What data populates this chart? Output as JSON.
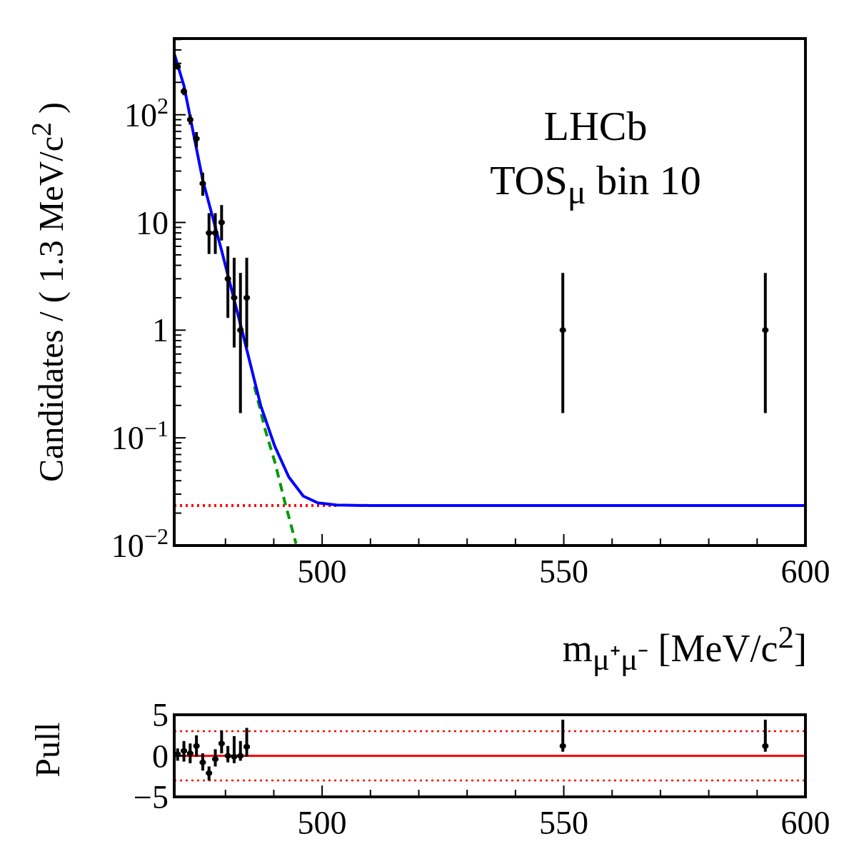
{
  "chart_data": [
    {
      "type": "scatter",
      "ylabel": "Candidates / ( 1.3 MeV/c$^{2}$ )",
      "xlabel": "m$_{μ⁺μ⁻}$ [MeV/c$^{2}$]",
      "annotations": [
        "LHCb",
        "TOS$_{μ}$ bin 10"
      ],
      "log": "y",
      "grid": false,
      "legend": false,
      "xlim": [
        469.4,
        600
      ],
      "ylim": [
        0.01,
        510
      ],
      "xticks": [
        {
          "value": 480,
          "label": null
        },
        {
          "value": 490,
          "label": null
        },
        500,
        {
          "value": 510,
          "label": null
        },
        {
          "value": 520,
          "label": null
        },
        {
          "value": 530,
          "label": null
        },
        {
          "value": 540,
          "label": null
        },
        550,
        {
          "value": 560,
          "label": null
        },
        {
          "value": 570,
          "label": null
        },
        {
          "value": 580,
          "label": null
        },
        {
          "value": 590,
          "label": null
        },
        600
      ],
      "yticks": [
        {
          "value": 0.01,
          "label": "10$^{−2}$"
        },
        {
          "value": 0.02,
          "label": null
        },
        {
          "value": 0.03,
          "label": null
        },
        {
          "value": 0.04,
          "label": null
        },
        {
          "value": 0.05,
          "label": null
        },
        {
          "value": 0.06,
          "label": null
        },
        {
          "value": 0.07,
          "label": null
        },
        {
          "value": 0.08,
          "label": null
        },
        {
          "value": 0.09,
          "label": null
        },
        {
          "value": 0.1,
          "label": "10$^{−1}$"
        },
        {
          "value": 0.2,
          "label": null
        },
        {
          "value": 0.3,
          "label": null
        },
        {
          "value": 0.4,
          "label": null
        },
        {
          "value": 0.5,
          "label": null
        },
        {
          "value": 0.6,
          "label": null
        },
        {
          "value": 0.7,
          "label": null
        },
        {
          "value": 0.8,
          "label": null
        },
        {
          "value": 0.9,
          "label": null
        },
        1,
        {
          "value": 2,
          "label": null
        },
        {
          "value": 3,
          "label": null
        },
        {
          "value": 4,
          "label": null
        },
        {
          "value": 5,
          "label": null
        },
        {
          "value": 6,
          "label": null
        },
        {
          "value": 7,
          "label": null
        },
        {
          "value": 8,
          "label": null
        },
        {
          "value": 9,
          "label": null
        },
        10,
        {
          "value": 20,
          "label": null
        },
        {
          "value": 30,
          "label": null
        },
        {
          "value": 40,
          "label": null
        },
        {
          "value": 50,
          "label": null
        },
        {
          "value": 60,
          "label": null
        },
        {
          "value": 70,
          "label": null
        },
        {
          "value": 80,
          "label": null
        },
        {
          "value": 90,
          "label": null
        },
        {
          "value": 100,
          "label": "10$^{2}$"
        },
        {
          "value": 200,
          "label": null
        },
        {
          "value": 300,
          "label": null
        },
        {
          "value": 400,
          "label": null
        },
        {
          "value": 500,
          "label": null
        }
      ],
      "series": [
        {
          "type": "line",
          "color": "#ff0000",
          "line_style": "dotted",
          "marker": "none",
          "x": [
            469.4,
            503
          ],
          "values": [
            0.0235,
            0.0235
          ]
        },
        {
          "type": "line",
          "color": "#009900",
          "line_style": "dashed",
          "marker": "none",
          "x": [
            486,
            488.2,
            490.2,
            492.2,
            494.6
          ],
          "values": [
            0.3,
            0.12,
            0.06,
            0.0262,
            0.0104
          ]
        },
        {
          "type": "line",
          "color": "#0000ff",
          "line_style": "solid",
          "marker": "none",
          "x": [
            469.4,
            471.4,
            475.3,
            479.2,
            483.4,
            487.3,
            490.2,
            493.1,
            496.1,
            499.1,
            503,
            510,
            600
          ],
          "values": [
            370,
            187,
            24.7,
            5.5,
            1,
            0.199,
            0.0836,
            0.0433,
            0.0288,
            0.0249,
            0.0238,
            0.0235,
            0.0235
          ]
        },
        {
          "color": "#000000",
          "marker": "circle",
          "x": [
            470.1,
            471.4,
            472.7,
            474.0,
            475.3,
            476.6,
            477.9,
            479.2,
            480.5,
            481.8,
            483.1,
            484.4,
            549.8,
            591.7
          ],
          "values": [
            280,
            165,
            90,
            60,
            23,
            8,
            8,
            10,
            3,
            2,
            1,
            2,
            1,
            1
          ],
          "errors": [
            [
              263,
              297
            ],
            [
              152,
              178
            ],
            [
              81,
              100
            ],
            [
              50,
              69
            ],
            [
              17.7,
              29
            ],
            [
              5.1,
              12.2
            ],
            [
              5.1,
              12.2
            ],
            [
              6.8,
              14.5
            ],
            [
              1.3,
              6.0
            ],
            [
              0.69,
              4.7
            ],
            [
              0.17,
              3.4
            ],
            [
              0.69,
              4.7
            ],
            [
              0.17,
              3.4
            ],
            [
              0.17,
              3.4
            ]
          ],
          "xerrors": [
            0.65,
            0.65,
            0.65,
            0.65,
            0.65,
            0.65,
            0.65,
            0.65,
            0.65,
            0.65,
            0.65,
            0.65,
            0.65,
            0.65
          ]
        }
      ]
    },
    {
      "type": "scatter",
      "ylabel": "Pull",
      "grid": false,
      "legend": false,
      "xlim": [
        469.4,
        600
      ],
      "ylim": [
        -5,
        5
      ],
      "xticks": [
        {
          "value": 480,
          "label": null
        },
        {
          "value": 490,
          "label": null
        },
        500,
        {
          "value": 510,
          "label": null
        },
        {
          "value": 520,
          "label": null
        },
        {
          "value": 530,
          "label": null
        },
        {
          "value": 540,
          "label": null
        },
        550,
        {
          "value": 560,
          "label": null
        },
        {
          "value": 570,
          "label": null
        },
        {
          "value": 580,
          "label": null
        },
        {
          "value": 590,
          "label": null
        },
        600
      ],
      "yticks": [
        {
          "value": -5,
          "label": "−5"
        },
        0,
        5
      ],
      "ref_lines": [
        {
          "axis": "y",
          "value": 0,
          "color": "#ff0000",
          "line_style": "solid"
        },
        {
          "axis": "y",
          "value": 3,
          "color": "#ff0000",
          "line_style": "dotted"
        },
        {
          "axis": "y",
          "value": -3,
          "color": "#ff0000",
          "line_style": "dotted"
        }
      ],
      "series": [
        {
          "color": "#000000",
          "marker": "circle",
          "x": [
            470.1,
            471.4,
            472.7,
            474.0,
            475.3,
            476.6,
            477.9,
            479.2,
            480.5,
            481.8,
            483.1,
            484.4,
            549.8,
            591.7
          ],
          "values": [
            0.2,
            0.6,
            0.3,
            1.2,
            -0.8,
            -2.1,
            -0.4,
            1.5,
            0,
            -0.1,
            0,
            1.1,
            1.2,
            1.2
          ],
          "errors": [
            [
              -0.6,
              0.9
            ],
            [
              -0.7,
              1.8
            ],
            [
              -0.9,
              1.5
            ],
            [
              -0.1,
              2.5
            ],
            [
              -1.8,
              0.3
            ],
            [
              -3.0,
              -1.3
            ],
            [
              -1.3,
              0.8
            ],
            [
              0.3,
              3.1
            ],
            [
              -0.8,
              1.2
            ],
            [
              -0.9,
              2.4
            ],
            [
              -0.6,
              1.8
            ],
            [
              -0.1,
              3.4
            ],
            [
              0.5,
              4.4
            ],
            [
              0.5,
              4.4
            ]
          ],
          "xerrors": [
            0.65,
            0.65,
            0.65,
            0.65,
            0.65,
            0.65,
            0.65,
            0.65,
            0.65,
            0.65,
            0.65,
            0.65,
            0.65,
            0.65
          ]
        }
      ]
    }
  ]
}
